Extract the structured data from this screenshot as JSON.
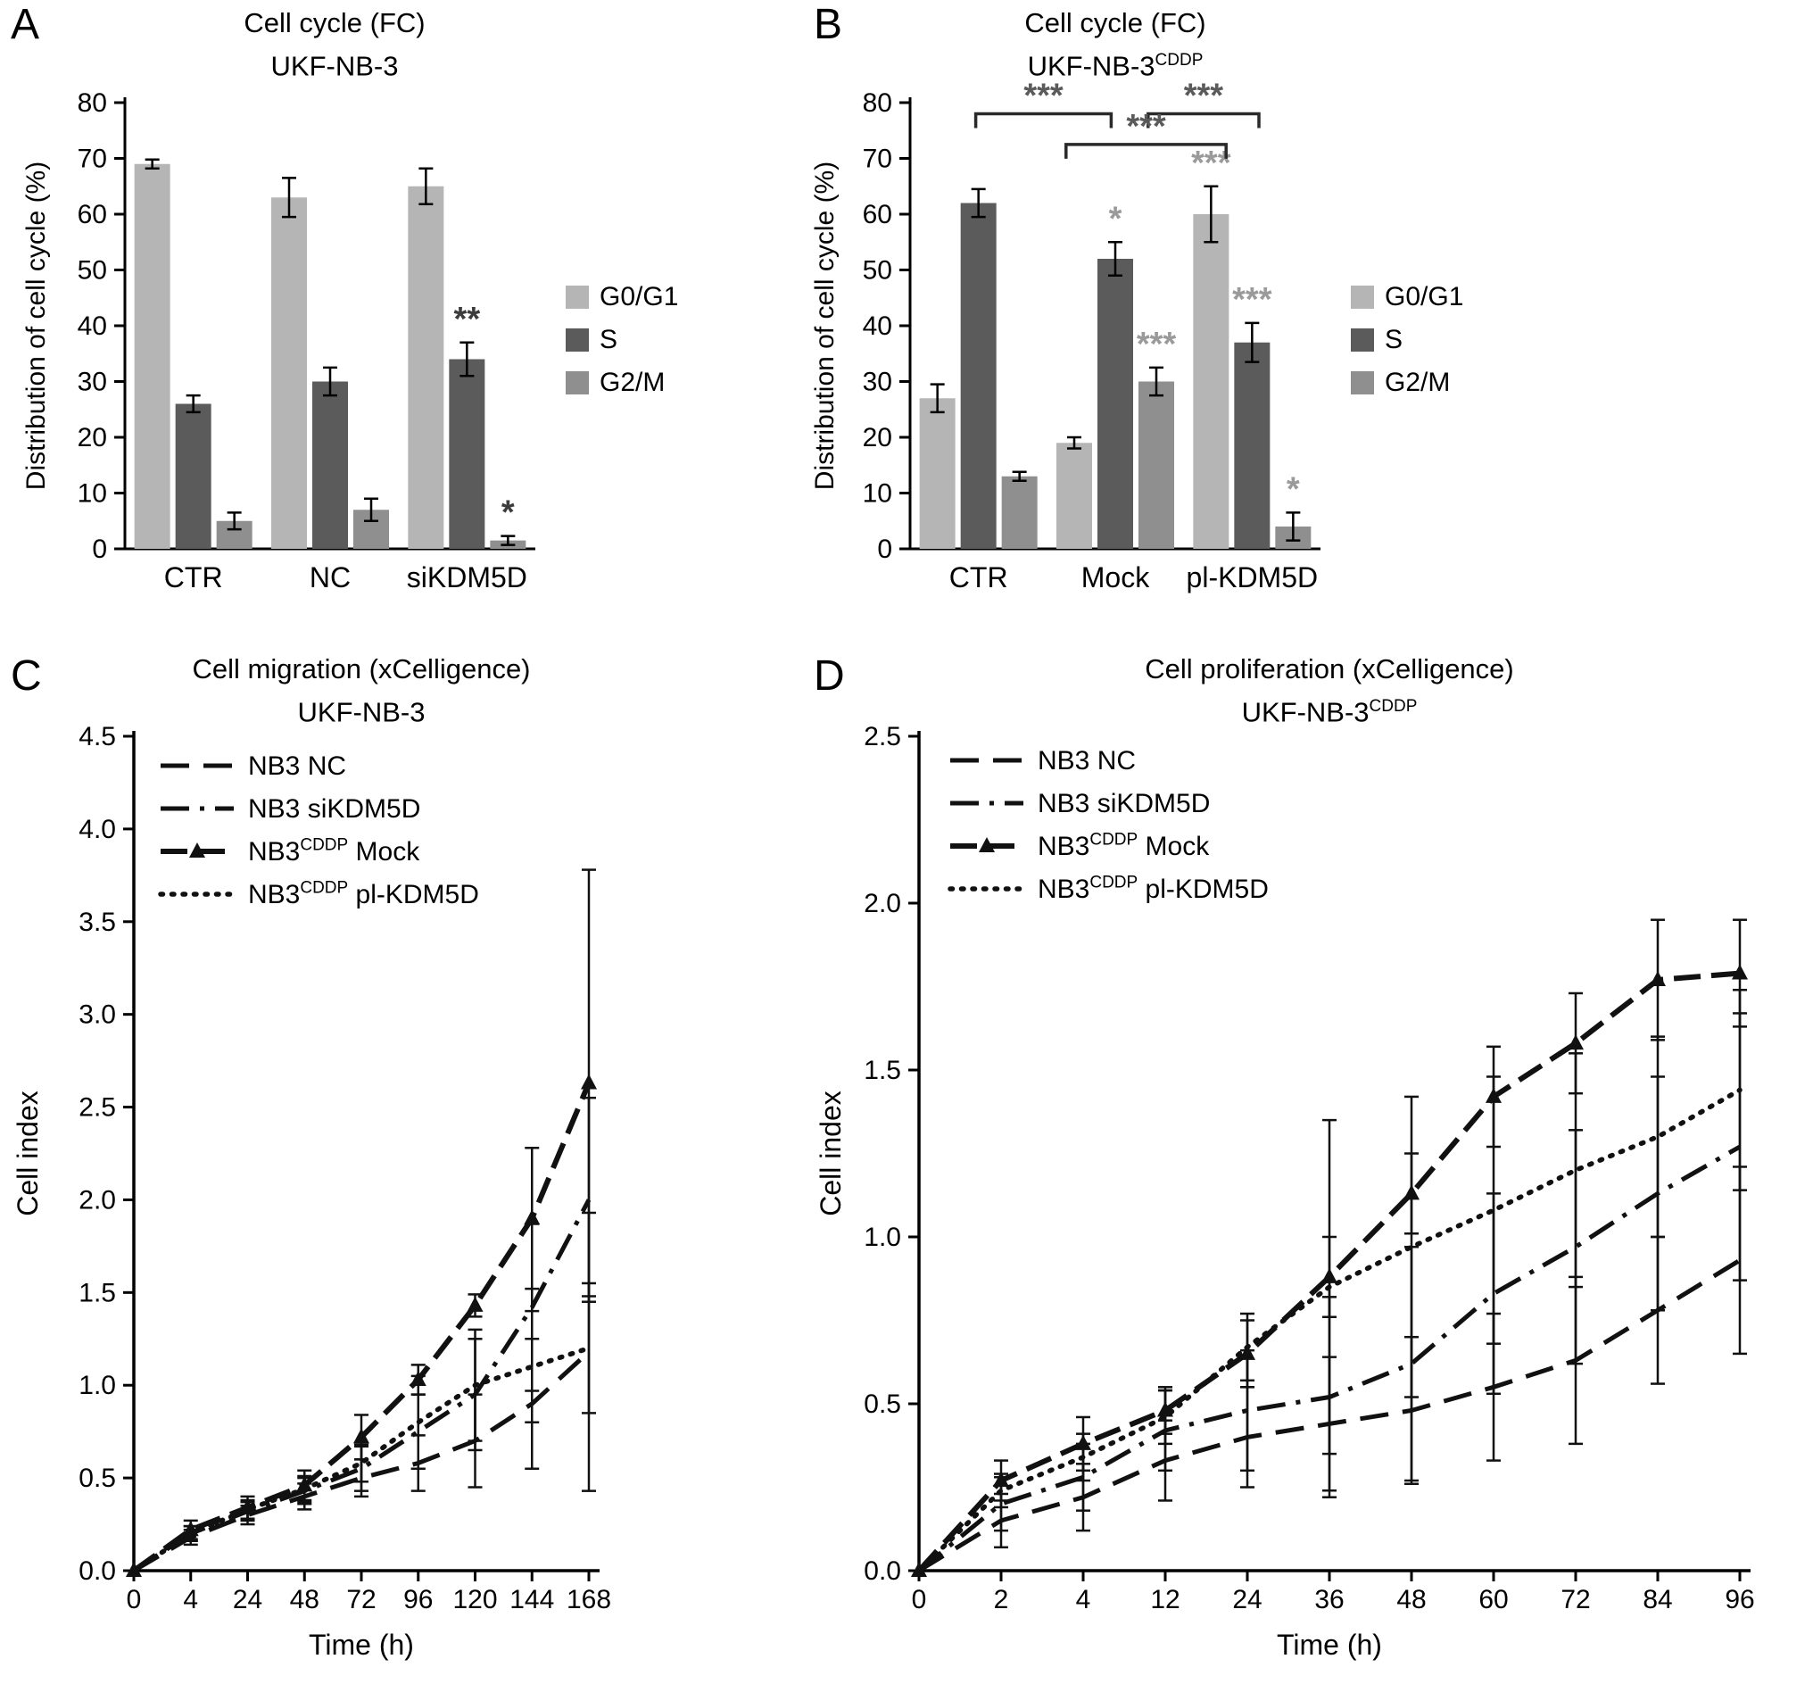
{
  "figure_background": "#ffffff",
  "chart_data": [
    {
      "type": "bar",
      "panel_label": "A",
      "title": "Cell cycle (FC)",
      "subtitle": "UKF-NB-3",
      "subtitle_sup": "",
      "ylabel": "Distribution of cell cycle (%)",
      "ylim": [
        0,
        80
      ],
      "ytick_step": 10,
      "ytick_decimals": 0,
      "grid": false,
      "legend_position": "right",
      "sig_color": "#3c3c3c",
      "categories": [
        "CTR",
        "NC",
        "siKDM5D"
      ],
      "series": [
        {
          "name": "G0/G1",
          "color": "#b5b5b5",
          "values": [
            69,
            63,
            65
          ],
          "errors": [
            0.8,
            3.5,
            3.2
          ],
          "sig": [
            "",
            "",
            ""
          ]
        },
        {
          "name": "S",
          "color": "#5b5b5b",
          "values": [
            26,
            30,
            34
          ],
          "errors": [
            1.5,
            2.5,
            3.0
          ],
          "sig": [
            "",
            "",
            "**"
          ]
        },
        {
          "name": "G2/M",
          "color": "#8f8f8f",
          "values": [
            5,
            7,
            1.5
          ],
          "errors": [
            1.5,
            2.0,
            0.8
          ],
          "sig": [
            "",
            "",
            "*"
          ]
        }
      ]
    },
    {
      "type": "bar",
      "panel_label": "B",
      "title": "Cell cycle (FC)",
      "subtitle": "UKF-NB-3",
      "subtitle_sup": "CDDP",
      "ylabel": "Distribution of cell cycle (%)",
      "ylim": [
        0,
        80
      ],
      "ytick_step": 10,
      "ytick_decimals": 0,
      "grid": false,
      "legend_position": "right",
      "sig_color": "#9a9a9a",
      "bracket_color": "#2a2a2a",
      "bracket_label_color": "#5a5a5a",
      "categories": [
        "CTR",
        "Mock",
        "pl-KDM5D"
      ],
      "series": [
        {
          "name": "G0/G1",
          "color": "#b5b5b5",
          "values": [
            27,
            19,
            60
          ],
          "errors": [
            2.5,
            1.0,
            5.0
          ],
          "sig": [
            "",
            "",
            "***"
          ]
        },
        {
          "name": "S",
          "color": "#5b5b5b",
          "values": [
            62,
            52,
            37
          ],
          "errors": [
            2.5,
            3.0,
            3.5
          ],
          "sig": [
            "",
            "*",
            "***"
          ]
        },
        {
          "name": "G2/M",
          "color": "#8f8f8f",
          "values": [
            13,
            30,
            4
          ],
          "errors": [
            0.8,
            2.5,
            2.5
          ],
          "sig": [
            "",
            "***",
            "*"
          ]
        }
      ],
      "brackets": [
        {
          "x1": 0.16,
          "x2": 0.49,
          "y": 78,
          "label": "***"
        },
        {
          "x1": 0.58,
          "x2": 0.85,
          "y": 78,
          "label": "***"
        },
        {
          "x1": 0.38,
          "x2": 0.77,
          "y": 72.5,
          "label": "***"
        }
      ]
    },
    {
      "type": "line",
      "panel_label": "C",
      "title": "Cell migration (xCelligence)",
      "subtitle": "UKF-NB-3",
      "subtitle_sup": "",
      "xlabel": "Time (h)",
      "ylabel": "Cell index",
      "ylim": [
        0,
        4.5
      ],
      "ytick_step": 0.5,
      "ytick_decimals": 1,
      "grid": false,
      "legend_position": "top-left",
      "x_categories": [
        "0",
        "4",
        "24",
        "48",
        "72",
        "96",
        "120",
        "144",
        "168"
      ],
      "series": [
        {
          "name": "NB3 NC",
          "style": "dash",
          "values": [
            0,
            0.18,
            0.3,
            0.4,
            0.5,
            0.58,
            0.7,
            0.9,
            1.18
          ],
          "errors": [
            0,
            0.04,
            0.05,
            0.07,
            0.1,
            0.15,
            0.25,
            0.35,
            0.75
          ]
        },
        {
          "name": "NB3 siKDM5D",
          "style": "dashdot",
          "values": [
            0,
            0.2,
            0.32,
            0.43,
            0.55,
            0.75,
            0.95,
            1.42,
            2.0
          ],
          "errors": [
            0,
            0.04,
            0.05,
            0.07,
            0.12,
            0.2,
            0.3,
            0.45,
            0.55
          ]
        },
        {
          "name": "NB3^CDDP^ Mock",
          "style": "dashtri",
          "values": [
            0,
            0.22,
            0.34,
            0.46,
            0.72,
            1.03,
            1.43,
            1.9,
            2.63
          ],
          "errors": [
            0,
            0.05,
            0.06,
            0.08,
            0.12,
            0.08,
            0.06,
            0.38,
            1.15
          ]
        },
        {
          "name": "NB3^CDDP^ pl-KDM5D",
          "style": "dot",
          "values": [
            0,
            0.2,
            0.33,
            0.44,
            0.58,
            0.8,
            1.0,
            1.1,
            1.2
          ],
          "errors": [
            0,
            0.04,
            0.05,
            0.07,
            0.1,
            0.25,
            0.3,
            0.3,
            0.35
          ]
        }
      ]
    },
    {
      "type": "line",
      "panel_label": "D",
      "title": "Cell proliferation (xCelligence)",
      "subtitle": "UKF-NB-3",
      "subtitle_sup": "CDDP",
      "xlabel": "Time (h)",
      "ylabel": "Cell index",
      "ylim": [
        0,
        2.5
      ],
      "ytick_step": 0.5,
      "ytick_decimals": 1,
      "grid": false,
      "legend_position": "top-left",
      "x_categories": [
        "0",
        "2",
        "4",
        "12",
        "24",
        "36",
        "48",
        "60",
        "72",
        "84",
        "96"
      ],
      "series": [
        {
          "name": "NB3 NC",
          "style": "dash",
          "values": [
            0,
            0.15,
            0.22,
            0.33,
            0.4,
            0.44,
            0.48,
            0.55,
            0.63,
            0.78,
            0.93
          ],
          "errors": [
            0,
            0.08,
            0.1,
            0.12,
            0.15,
            0.2,
            0.22,
            0.22,
            0.25,
            0.22,
            0.28
          ]
        },
        {
          "name": "NB3 siKDM5D",
          "style": "dashdot",
          "values": [
            0,
            0.2,
            0.28,
            0.42,
            0.48,
            0.52,
            0.62,
            0.83,
            0.97,
            1.13,
            1.27
          ],
          "errors": [
            0,
            0.08,
            0.1,
            0.12,
            0.18,
            0.3,
            0.35,
            0.3,
            0.35,
            0.35,
            0.4
          ]
        },
        {
          "name": "NB3^CDDP^ Mock",
          "style": "dashtri",
          "values": [
            0,
            0.27,
            0.38,
            0.48,
            0.65,
            0.88,
            1.13,
            1.42,
            1.58,
            1.77,
            1.79
          ],
          "errors": [
            0,
            0.06,
            0.08,
            0.07,
            0.1,
            0.12,
            0.12,
            0.15,
            0.15,
            0.18,
            0.16
          ]
        },
        {
          "name": "NB3^CDDP^ pl-KDM5D",
          "style": "dot",
          "values": [
            0,
            0.24,
            0.34,
            0.46,
            0.67,
            0.85,
            0.97,
            1.08,
            1.2,
            1.3,
            1.44
          ],
          "errors": [
            0,
            0.05,
            0.07,
            0.08,
            0.1,
            0.5,
            0.45,
            0.4,
            0.35,
            0.3,
            0.3
          ]
        }
      ]
    }
  ]
}
